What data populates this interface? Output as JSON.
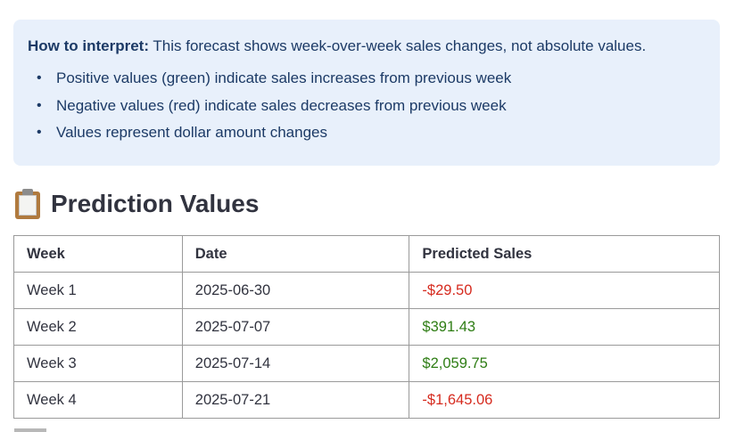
{
  "info": {
    "label": "How to interpret:",
    "text": " This forecast shows week-over-week sales changes, not absolute values.",
    "bullets": [
      "Positive values (green) indicate sales increases from previous week",
      "Negative values (red) indicate sales decreases from previous week",
      "Values represent dollar amount changes"
    ],
    "bullet_symbol": "•"
  },
  "section": {
    "icon": "clipboard-icon",
    "title": "Prediction Values"
  },
  "table": {
    "headers": [
      "Week",
      "Date",
      "Predicted Sales"
    ],
    "rows": [
      {
        "week": "Week 1",
        "date": "2025-06-30",
        "sales": "-$29.50",
        "trend": "negative"
      },
      {
        "week": "Week 2",
        "date": "2025-07-07",
        "sales": "$391.43",
        "trend": "positive"
      },
      {
        "week": "Week 3",
        "date": "2025-07-14",
        "sales": "$2,059.75",
        "trend": "positive"
      },
      {
        "week": "Week 4",
        "date": "2025-07-21",
        "sales": "-$1,645.06",
        "trend": "negative"
      }
    ]
  },
  "colors": {
    "info_background": "#e8f0fb",
    "info_text": "#1c3a66",
    "positive": "#2e7d14",
    "negative": "#d62b1f"
  }
}
